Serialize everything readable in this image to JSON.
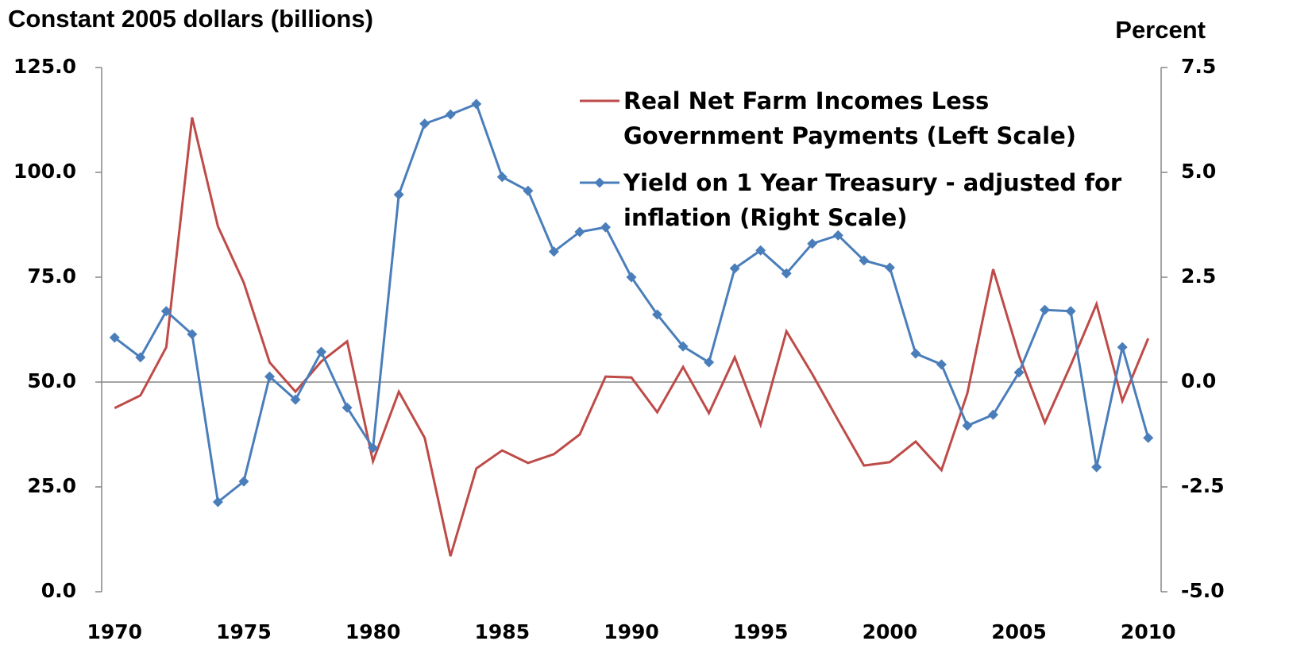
{
  "chart_data": {
    "type": "line",
    "y_label": "Constant 2005 dollars (billions)",
    "y2_label": "Percent",
    "x": [
      1970,
      1971,
      1972,
      1973,
      1974,
      1975,
      1976,
      1977,
      1978,
      1979,
      1980,
      1981,
      1982,
      1983,
      1984,
      1985,
      1986,
      1987,
      1988,
      1989,
      1990,
      1991,
      1992,
      1993,
      1994,
      1995,
      1996,
      1997,
      1998,
      1999,
      2000,
      2001,
      2002,
      2003,
      2004,
      2005,
      2006,
      2007,
      2008,
      2009,
      2010
    ],
    "xlim": [
      1969.5,
      2010.5
    ],
    "xticks": [
      1970,
      1975,
      1980,
      1985,
      1990,
      1995,
      2000,
      2005,
      2010
    ],
    "ylim": [
      0,
      125
    ],
    "yticks": [
      {
        "value": 0,
        "label": "0.0"
      },
      {
        "value": 25,
        "label": "25.0"
      },
      {
        "value": 50,
        "label": "50.0"
      },
      {
        "value": 75,
        "label": "75.0"
      },
      {
        "value": 100,
        "label": "100.0"
      },
      {
        "value": 125,
        "label": "125.0"
      }
    ],
    "y2lim": [
      -5,
      7.5
    ],
    "y2ticks": [
      {
        "value": -5,
        "label": "-5.0"
      },
      -2.5,
      {
        "value": 0,
        "label": "0.0"
      },
      2.5,
      {
        "value": 5,
        "label": "5.0"
      },
      7.5
    ],
    "series": [
      {
        "name": "Real Net Farm Incomes Less Government Payments (Left Scale)",
        "color": "#be4b48",
        "marker": "none",
        "values": [
          43.8,
          46.8,
          58.3,
          113.1,
          87.1,
          73.7,
          54.7,
          47.7,
          54.9,
          59.7,
          31.1,
          47.7,
          36.7,
          8.5,
          29.4,
          33.7,
          30.7,
          32.8,
          37.5,
          51.3,
          51.1,
          42.8,
          53.6,
          42.6,
          55.9,
          39.8,
          62.1,
          51.9,
          40.9,
          30.1,
          30.9,
          35.8,
          29.0,
          47.3,
          76.9,
          56.3,
          40.3,
          54.0,
          68.6,
          45.5,
          60.4
        ]
      },
      {
        "name": "Yield on 1 Year Treasury - adjusted for inflation (Right Scale)",
        "color": "#4a7ebb",
        "marker": "diamond",
        "axis": "y2",
        "values": [
          1.06,
          0.59,
          1.69,
          1.14,
          -2.86,
          -2.37,
          0.13,
          -0.42,
          0.72,
          -0.61,
          -1.57,
          4.47,
          6.16,
          6.38,
          6.63,
          4.89,
          4.56,
          3.11,
          3.58,
          3.69,
          2.5,
          1.61,
          0.85,
          0.47,
          2.71,
          3.14,
          2.59,
          3.3,
          3.5,
          2.9,
          2.73,
          0.68,
          0.42,
          -1.04,
          -0.78,
          0.23,
          1.72,
          1.69,
          -2.03,
          0.83,
          -1.33
        ]
      }
    ]
  }
}
